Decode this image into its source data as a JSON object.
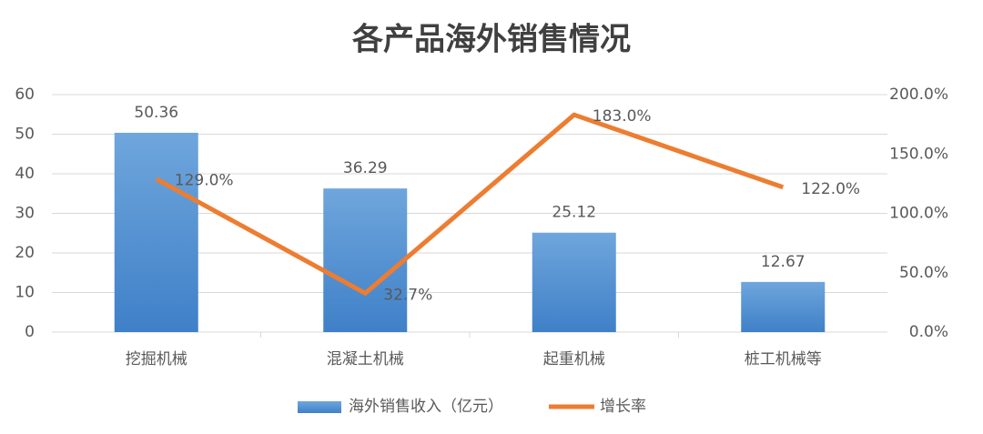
{
  "chart_data": {
    "type": "bar",
    "title": "各产品海外销售情况",
    "categories": [
      "挖掘机械",
      "混凝土机械",
      "起重机械",
      "桩工机械等"
    ],
    "series": [
      {
        "name": "海外销售收入（亿元）",
        "type": "bar",
        "color": "#5b9bd5",
        "values": [
          50.36,
          36.29,
          25.12,
          12.67
        ]
      },
      {
        "name": "增长率",
        "type": "line",
        "axis": "y2",
        "color": "#ed7d31",
        "values": [
          129.0,
          32.7,
          183.0,
          122.0
        ],
        "value_labels": [
          "129.0%",
          "32.7%",
          "183.0%",
          "122.0%"
        ]
      }
    ],
    "ylim": [
      0,
      60
    ],
    "yticks": [
      0,
      10,
      20,
      30,
      40,
      50,
      60
    ],
    "y2lim": [
      0,
      200
    ],
    "y2ticks": [
      {
        "value": 0,
        "label": "0.0%"
      },
      {
        "value": 50,
        "label": "50.0%"
      },
      {
        "value": 100,
        "label": "100.0%"
      },
      {
        "value": 150,
        "label": "150.0%"
      },
      {
        "value": 200,
        "label": "200.0%"
      }
    ],
    "grid": true,
    "legend": "bottom"
  }
}
